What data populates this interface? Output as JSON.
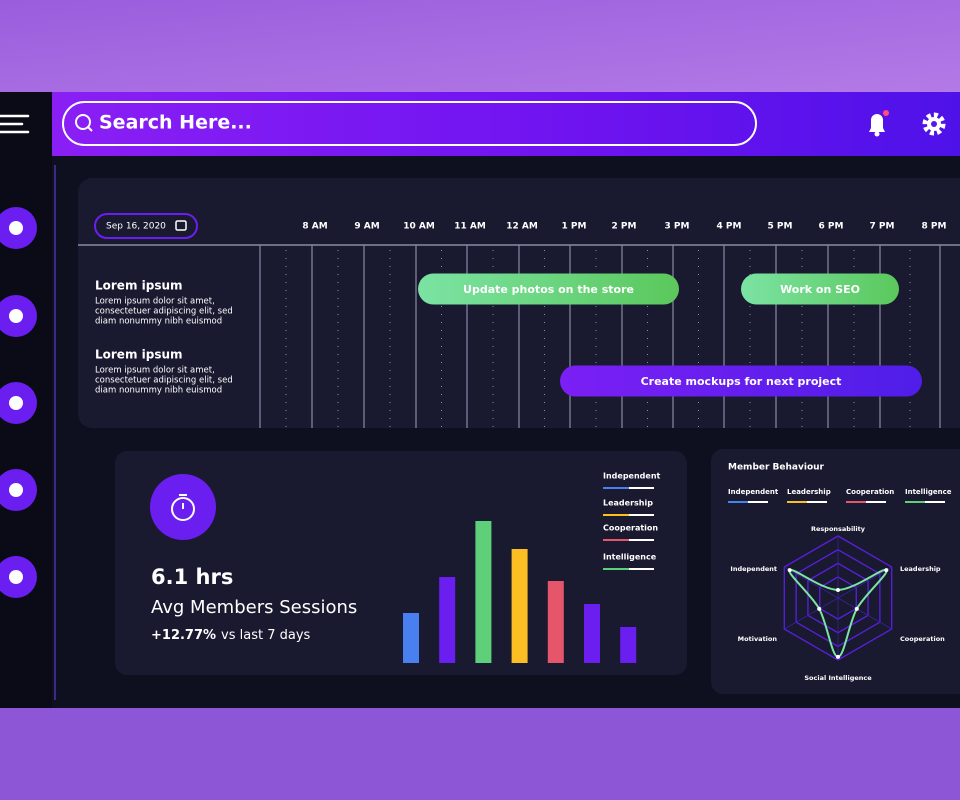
{
  "search": {
    "placeholder": "Search Here..."
  },
  "schedule": {
    "date": "Sep 16, 2020",
    "times": [
      "8 AM",
      "9 AM",
      "10 AM",
      "11 AM",
      "12 AM",
      "1 PM",
      "2 PM",
      "3 PM",
      "4 PM",
      "5 PM",
      "6 PM",
      "7 PM",
      "8 PM"
    ],
    "rows": [
      {
        "title": "Lorem ipsum",
        "lines": [
          "Lorem ipsum dolor sit amet,",
          "consectetuer adipiscing elit, sed",
          "diam nonummy nibh euismod"
        ]
      },
      {
        "title": "Lorem ipsum",
        "lines": [
          "Lorem ipsum dolor sit amet,",
          "consectetuer adipiscing elit, sed",
          "diam nonummy nibh euismod"
        ]
      }
    ],
    "tasks": [
      "Update photos on the store",
      "Work on SEO",
      "Create mockups for next project"
    ]
  },
  "stats": {
    "value": "6.1 hrs",
    "label": "Avg Members Sessions",
    "change": "+12.77%",
    "change_note": "vs last 7 days"
  },
  "sessions_chart": {
    "type": "bar",
    "values": [
      50,
      86,
      142,
      114,
      82,
      59,
      36
    ],
    "colors": [
      "#4a7ff0",
      "#6a1ef0",
      "#5ed07a",
      "#fbbf24",
      "#e5566b",
      "#6a1ef0",
      "#6a1ef0"
    ],
    "ylim": [
      0,
      150
    ],
    "legend": [
      {
        "name": "Independent",
        "color": "#4a7ff0"
      },
      {
        "name": "Leadership",
        "color": "#fbbf24"
      },
      {
        "name": "Cooperation",
        "color": "#e5566b"
      },
      {
        "name": "Intelligence",
        "color": "#5ed07a"
      }
    ]
  },
  "behaviour": {
    "title": "Member Behaviour",
    "type": "radar",
    "legend": [
      {
        "name": "Independent",
        "color": "#4a7ff0"
      },
      {
        "name": "Leadership",
        "color": "#fbbf24"
      },
      {
        "name": "Cooperation",
        "color": "#e5566b"
      },
      {
        "name": "Intelligence",
        "color": "#5ed07a"
      }
    ],
    "axes": [
      "Responsability",
      "Leadership",
      "Cooperation",
      "Social Intelligence",
      "Motivation",
      "Independent"
    ],
    "values": [
      13,
      90,
      35,
      95,
      35,
      90
    ],
    "rlim": [
      0,
      100
    ],
    "color": "#7be3a3"
  }
}
